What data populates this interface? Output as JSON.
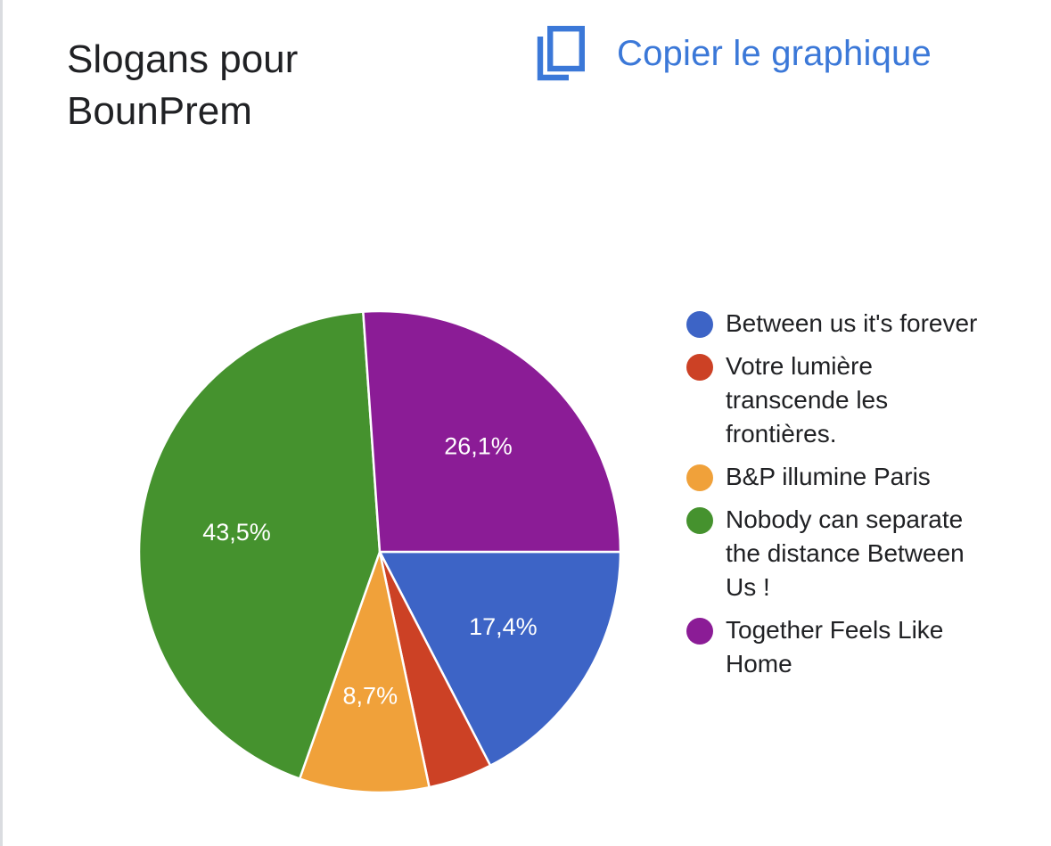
{
  "header": {
    "title_line1": "Slogans pour",
    "title_line2": "BounPrem",
    "copy_label": "Copier le graphique",
    "copy_icon": "copy-icon",
    "accent_color": "#3b78d8"
  },
  "chart_data": {
    "type": "pie",
    "title": "Slogans pour BounPrem",
    "legend_position": "right",
    "slices": [
      {
        "name": "Between us it's forever",
        "value": 17.4,
        "label": "17,4%",
        "color": "#3d64c6"
      },
      {
        "name": "Votre lumière transcende les frontières.",
        "value": 4.3,
        "label": "",
        "color": "#cc4125"
      },
      {
        "name": "B&P illumine Paris",
        "value": 8.7,
        "label": "8,7%",
        "color": "#f0a13a"
      },
      {
        "name": "Nobody can separate the distance Between Us !",
        "value": 43.5,
        "label": "43,5%",
        "color": "#45922e"
      },
      {
        "name": "Together Feels Like Home",
        "value": 26.1,
        "label": "26,1%",
        "color": "#8b1c96"
      }
    ]
  }
}
